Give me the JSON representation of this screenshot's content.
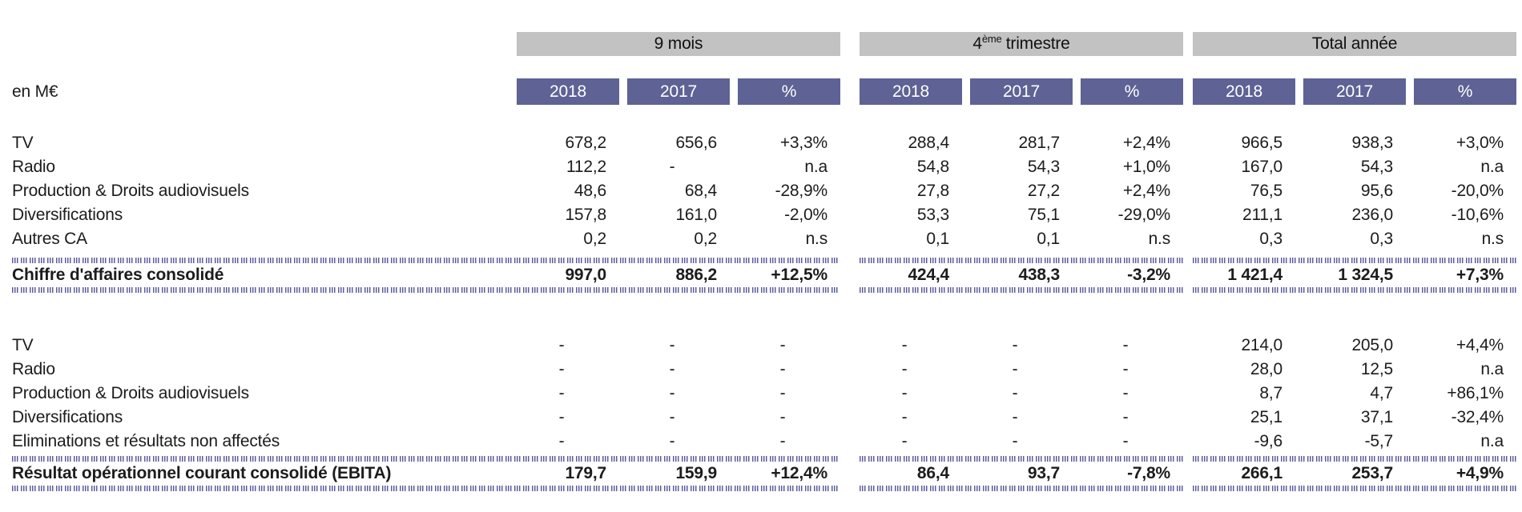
{
  "unit_label": "en M€",
  "colors": {
    "band_bg": "#c2c2c2",
    "year_header_bg": "#5e6294",
    "year_header_text": "#ffffff",
    "separator_hatch": "#5c5c9e",
    "text": "#1c1c1c"
  },
  "header": {
    "groups": [
      {
        "label": "9 mois",
        "years": [
          "2018",
          "2017",
          "%"
        ]
      },
      {
        "label_base": "4",
        "label_sup": "ème",
        "label_rest": "trimestre",
        "years": [
          "2018",
          "2017",
          "%"
        ]
      },
      {
        "label": "Total année",
        "years": [
          "2018",
          "2017",
          "%"
        ]
      }
    ]
  },
  "sections": [
    {
      "rows": [
        {
          "label": "TV",
          "values": [
            "678,2",
            "656,6",
            "+3,3%",
            "288,4",
            "281,7",
            "+2,4%",
            "966,5",
            "938,3",
            "+3,0%"
          ]
        },
        {
          "label": "Radio",
          "values": [
            "112,2",
            "-",
            "n.a",
            "54,8",
            "54,3",
            "+1,0%",
            "167,0",
            "54,3",
            "n.a"
          ]
        },
        {
          "label": "Production & Droits audiovisuels",
          "values": [
            "48,6",
            "68,4",
            "-28,9%",
            "27,8",
            "27,2",
            "+2,4%",
            "76,5",
            "95,6",
            "-20,0%"
          ]
        },
        {
          "label": "Diversifications",
          "values": [
            "157,8",
            "161,0",
            "-2,0%",
            "53,3",
            "75,1",
            "-29,0%",
            "211,1",
            "236,0",
            "-10,6%"
          ]
        },
        {
          "label": "Autres CA",
          "values": [
            "0,2",
            "0,2",
            "n.s",
            "0,1",
            "0,1",
            "n.s",
            "0,3",
            "0,3",
            "n.s"
          ]
        }
      ],
      "total_row": {
        "label": "Chiffre d'affaires consolidé",
        "values": [
          "997,0",
          "886,2",
          "+12,5%",
          "424,4",
          "438,3",
          "-3,2%",
          "1 421,4",
          "1 324,5",
          "+7,3%"
        ]
      }
    },
    {
      "rows": [
        {
          "label": "TV",
          "values": [
            "-",
            "-",
            "-",
            "-",
            "-",
            "-",
            "214,0",
            "205,0",
            "+4,4%"
          ]
        },
        {
          "label": "Radio",
          "values": [
            "-",
            "-",
            "-",
            "-",
            "-",
            "-",
            "28,0",
            "12,5",
            "n.a"
          ]
        },
        {
          "label": "Production & Droits audiovisuels",
          "values": [
            "-",
            "-",
            "-",
            "-",
            "-",
            "-",
            "8,7",
            "4,7",
            "+86,1%"
          ]
        },
        {
          "label": "Diversifications",
          "values": [
            "-",
            "-",
            "-",
            "-",
            "-",
            "-",
            "25,1",
            "37,1",
            "-32,4%"
          ]
        },
        {
          "label": "Eliminations et résultats non affectés",
          "values": [
            "-",
            "-",
            "-",
            "-",
            "-",
            "-",
            "-9,6",
            "-5,7",
            "n.a"
          ]
        }
      ],
      "total_row": {
        "label": "Résultat opérationnel courant consolidé (EBITA)",
        "values": [
          "179,7",
          "159,9",
          "+12,4%",
          "86,4",
          "93,7",
          "-7,8%",
          "266,1",
          "253,7",
          "+4,9%"
        ]
      }
    }
  ]
}
